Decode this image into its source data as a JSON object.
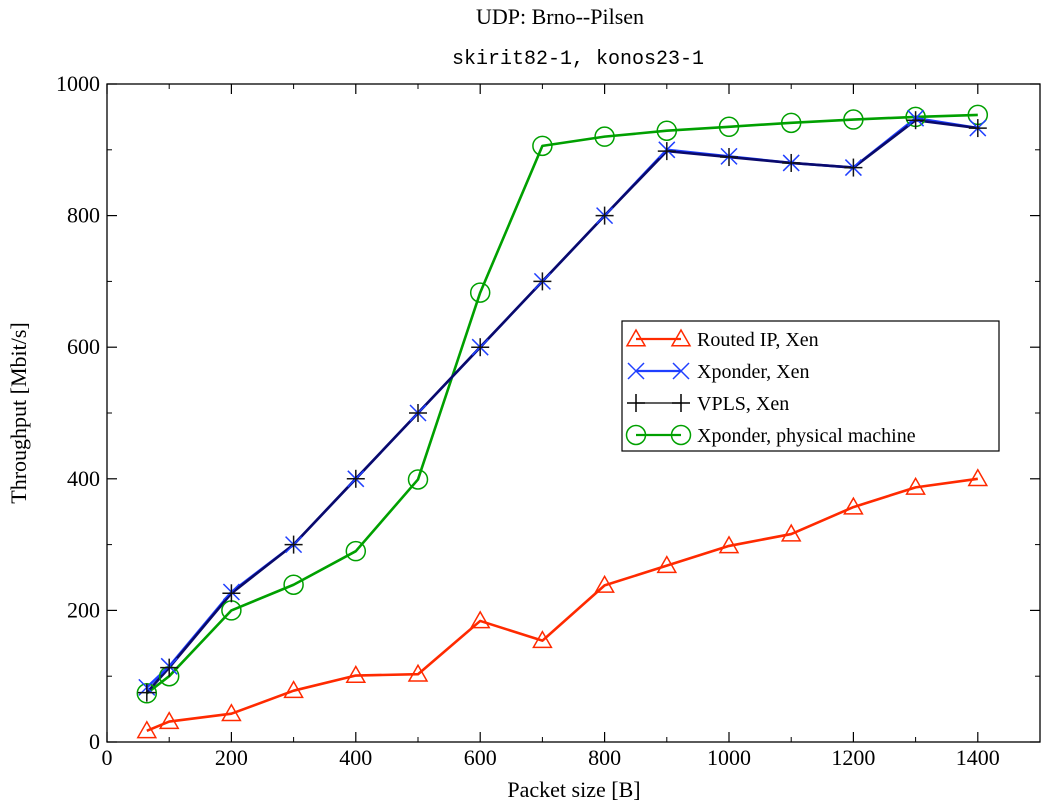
{
  "chart_data": {
    "type": "line",
    "title": "UDP: Brno--Pilsen",
    "subtitle": "skirit82-1, konos23-1",
    "xlabel": "Packet size [B]",
    "ylabel": "Throughput [Mbit/s]",
    "xlim": [
      0,
      1500
    ],
    "ylim": [
      0,
      1000
    ],
    "xticks": [
      0,
      200,
      400,
      600,
      800,
      1000,
      1200,
      1400
    ],
    "yticks": [
      0,
      200,
      400,
      600,
      800,
      1000
    ],
    "grid": false,
    "legend_position": "center-right",
    "series": [
      {
        "name": "Routed IP, Xen",
        "color": "#ff2a00",
        "marker": "triangle",
        "x": [
          64,
          100,
          200,
          300,
          400,
          500,
          600,
          700,
          800,
          900,
          1000,
          1100,
          1200,
          1300,
          1400
        ],
        "y": [
          17,
          31,
          43,
          78,
          101,
          103,
          184,
          154,
          238,
          268,
          298,
          316,
          357,
          387,
          400
        ]
      },
      {
        "name": "Xponder, Xen",
        "color": "#1f3fff",
        "marker": "x",
        "x": [
          64,
          100,
          200,
          300,
          400,
          500,
          600,
          700,
          800,
          900,
          1000,
          1100,
          1200,
          1300,
          1400
        ],
        "y": [
          83,
          115,
          228,
          300,
          400,
          500,
          600,
          700,
          800,
          900,
          890,
          880,
          873,
          948,
          933
        ]
      },
      {
        "name": "VPLS, Xen",
        "color": "#000000",
        "marker": "plus",
        "x": [
          64,
          100,
          200,
          300,
          400,
          500,
          600,
          700,
          800,
          900,
          1000,
          1100,
          1200,
          1300,
          1400
        ],
        "y": [
          75,
          113,
          226,
          300,
          400,
          500,
          600,
          700,
          800,
          898,
          889,
          880,
          873,
          945,
          933
        ]
      },
      {
        "name": "Xponder, physical machine",
        "color": "#00a000",
        "marker": "circle",
        "x": [
          64,
          100,
          200,
          300,
          400,
          500,
          600,
          700,
          800,
          900,
          1000,
          1100,
          1200,
          1300,
          1400
        ],
        "y": [
          74,
          100,
          200,
          239,
          290,
          399,
          683,
          906,
          920,
          929,
          935,
          941,
          946,
          950,
          953
        ]
      }
    ],
    "overlay_series": {
      "name": "Xponder, Xen (navy trace)",
      "color": "#0a0a6b"
    }
  }
}
